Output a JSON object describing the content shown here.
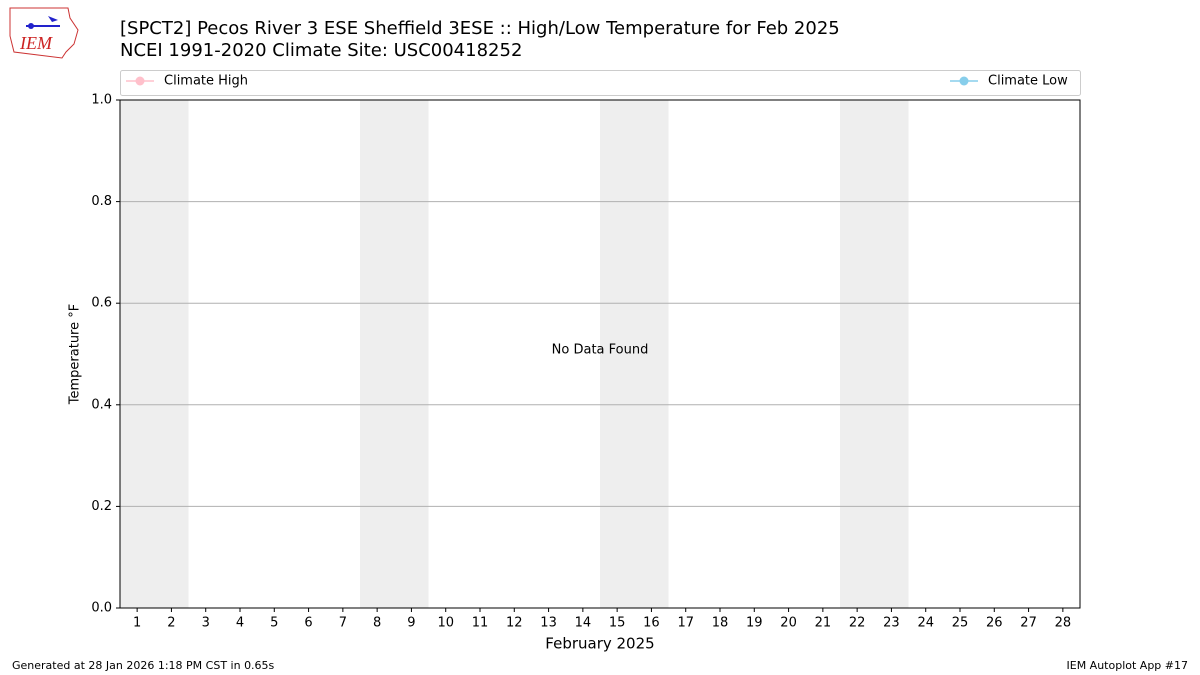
{
  "chart_data": {
    "type": "line",
    "title": "[SPCT2] Pecos River 3 ESE Sheffield 3ESE :: High/Low Temperature for Feb 2025",
    "subtitle": "NCEI 1991-2020 Climate Site: USC00418252",
    "x_label": "February 2025",
    "y_label": "Temperature °F",
    "annotation": "No Data Found",
    "annotation_position": [
      14.5,
      0.5
    ],
    "x": [
      1,
      2,
      3,
      4,
      5,
      6,
      7,
      8,
      9,
      10,
      11,
      12,
      13,
      14,
      15,
      16,
      17,
      18,
      19,
      20,
      21,
      22,
      23,
      24,
      25,
      26,
      27,
      28
    ],
    "series": [
      {
        "name": "Climate High",
        "color": "#ffc0cb",
        "values": [
          null,
          null,
          null,
          null,
          null,
          null,
          null,
          null,
          null,
          null,
          null,
          null,
          null,
          null,
          null,
          null,
          null,
          null,
          null,
          null,
          null,
          null,
          null,
          null,
          null,
          null,
          null,
          null
        ]
      },
      {
        "name": "Climate Low",
        "color": "#87ceeb",
        "values": [
          null,
          null,
          null,
          null,
          null,
          null,
          null,
          null,
          null,
          null,
          null,
          null,
          null,
          null,
          null,
          null,
          null,
          null,
          null,
          null,
          null,
          null,
          null,
          null,
          null,
          null,
          null,
          null
        ]
      }
    ],
    "xlim": [
      0.5,
      28.5
    ],
    "xticks": [
      1,
      2,
      3,
      4,
      5,
      6,
      7,
      8,
      9,
      10,
      11,
      12,
      13,
      14,
      15,
      16,
      17,
      18,
      19,
      20,
      21,
      22,
      23,
      24,
      25,
      26,
      27,
      28
    ],
    "ylim": [
      0,
      1
    ],
    "yticks": [
      {
        "value": 0,
        "label": "0.0"
      },
      {
        "value": 0.2,
        "label": "0.2"
      },
      {
        "value": 0.4,
        "label": "0.4"
      },
      {
        "value": 0.6,
        "label": "0.6"
      },
      {
        "value": 0.8,
        "label": "0.8"
      },
      {
        "value": 1,
        "label": "1.0"
      }
    ],
    "grid": true,
    "shaded_ranges": [
      [
        0.5,
        2.5
      ],
      [
        7.5,
        9.5
      ],
      [
        14.5,
        16.5
      ],
      [
        21.5,
        23.5
      ]
    ],
    "shade_color": "#eeeeee",
    "footer_left": "Generated at 28 Jan 2026 1:18 PM CST in 0.65s",
    "footer_right": "IEM Autoplot App #17",
    "logo_text": "IEM"
  }
}
